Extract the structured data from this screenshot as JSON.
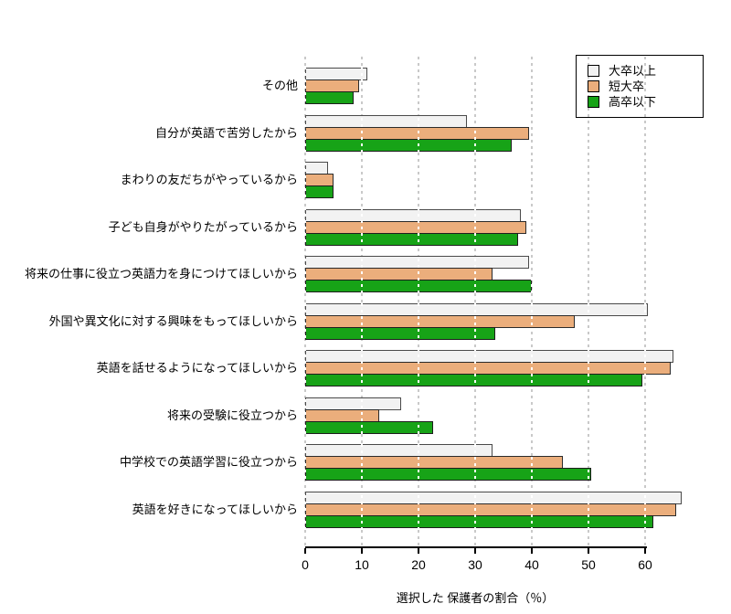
{
  "background": "#ffffff",
  "chart_data": {
    "type": "bar",
    "orientation": "horizontal",
    "title": "",
    "xlabel": "選択した 保護者の割合（％）",
    "xlim": [
      0,
      70
    ],
    "xticks": [
      0,
      10,
      20,
      30,
      40,
      50,
      60
    ],
    "grid": true,
    "gridline_style": "dashed",
    "legend_position": "top-right",
    "categories_top_to_bottom": [
      "その他",
      "自分が英語で苦労したから",
      "まわりの友だちがやっているから",
      "子ども自身がやりたがっているから",
      "将来の仕事に役立つ英語力を身につけてほしいから",
      "外国や異文化に対する興味をもってほしいから",
      "英語を話せるようになってほしいから",
      "将来の受験に役立つから",
      "中学校での英語学習に役立つから",
      "英語を好きになってほしいから"
    ],
    "series": [
      {
        "name": "大卒以上",
        "color": "#f2f2f2",
        "border_color": "#4a4a4a",
        "values": [
          11,
          28.5,
          4,
          38,
          39.5,
          60.5,
          65,
          17,
          33,
          66.5
        ]
      },
      {
        "name": "短大卒",
        "color": "#ebae7c",
        "border_color": "#2b2b2b",
        "values": [
          9.5,
          39.5,
          5,
          39,
          33,
          47.5,
          64.5,
          13,
          45.5,
          65.5
        ]
      },
      {
        "name": "高卒以下",
        "color": "#17a317",
        "border_color": "#1d1d1d",
        "values": [
          8.5,
          36.5,
          5,
          37.5,
          40,
          33.5,
          59.5,
          22.5,
          50.5,
          61.5
        ]
      }
    ],
    "grid_color_background": "#c9c9c9",
    "grid_color_over_bars": "#ffffff",
    "axis_color": "#000000"
  }
}
